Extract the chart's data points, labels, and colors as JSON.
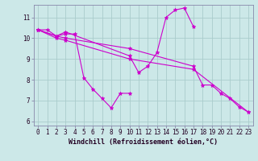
{
  "bg_color": "#cce8e8",
  "line_color": "#cc00cc",
  "grid_color": "#aacccc",
  "xlabel": "Windchill (Refroidissement éolien,°C)",
  "ylim": [
    5.8,
    11.6
  ],
  "xlim": [
    -0.5,
    23.5
  ],
  "yticks": [
    6,
    7,
    8,
    9,
    10,
    11
  ],
  "xticks": [
    0,
    1,
    2,
    3,
    4,
    5,
    6,
    7,
    8,
    9,
    10,
    11,
    12,
    13,
    14,
    15,
    16,
    17,
    18,
    19,
    20,
    21,
    22,
    23
  ],
  "series": [
    {
      "x": [
        0,
        1,
        2,
        3,
        4,
        5,
        6,
        7,
        8,
        9,
        10
      ],
      "y": [
        10.4,
        10.4,
        10.1,
        10.2,
        10.2,
        8.1,
        7.55,
        7.1,
        6.65,
        7.35,
        7.35
      ]
    },
    {
      "x": [
        0,
        2,
        3,
        10,
        11,
        12,
        13,
        14,
        15,
        16,
        17
      ],
      "y": [
        10.4,
        10.1,
        10.3,
        9.15,
        8.35,
        8.65,
        9.3,
        11.0,
        11.35,
        11.45,
        10.55
      ]
    },
    {
      "x": [
        0,
        2,
        3,
        10,
        17,
        18,
        19,
        20,
        21,
        22,
        23
      ],
      "y": [
        10.4,
        10.1,
        10.0,
        9.5,
        8.65,
        7.75,
        7.75,
        7.35,
        7.1,
        6.7,
        6.45
      ]
    },
    {
      "x": [
        0,
        2,
        3,
        10,
        17,
        23
      ],
      "y": [
        10.4,
        10.0,
        9.9,
        9.0,
        8.5,
        6.45
      ]
    }
  ]
}
